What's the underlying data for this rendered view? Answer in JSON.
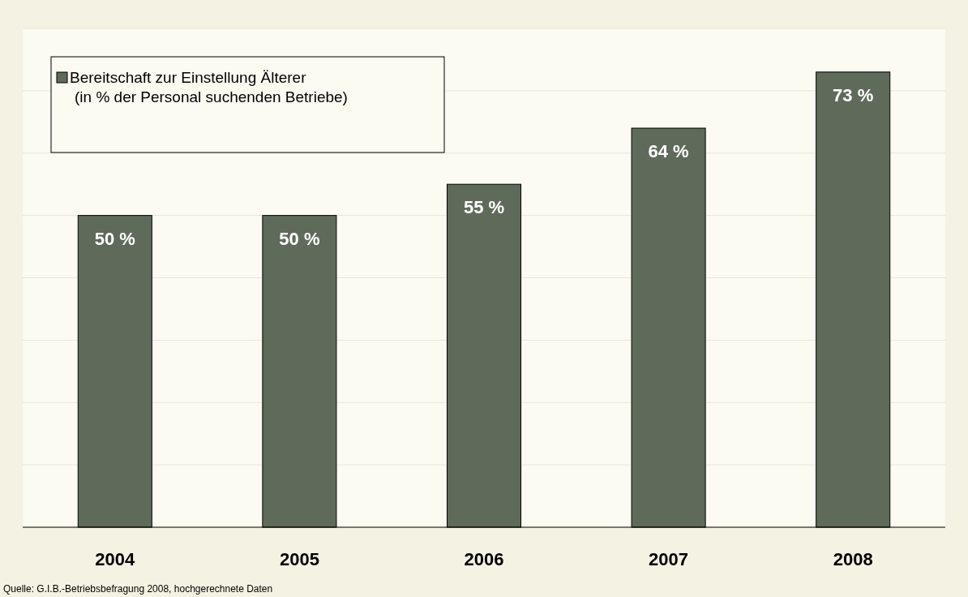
{
  "chart_data": {
    "type": "bar",
    "categories": [
      "2004",
      "2005",
      "2006",
      "2007",
      "2008"
    ],
    "series": [
      {
        "name": "Bereitschaft zur Einstellung Älterer\n(in % der Personal suchenden Betriebe)",
        "color": "#5f6b5a",
        "values": [
          50,
          50,
          55,
          64,
          73
        ],
        "value_labels": [
          "50 %",
          "50 %",
          "55 %",
          "64 %",
          "73 %"
        ]
      }
    ],
    "ylim": [
      0,
      80
    ],
    "yticks": [
      {
        "value": 0,
        "label": null
      },
      {
        "value": 10,
        "label": null
      },
      {
        "value": 20,
        "label": null
      },
      {
        "value": 30,
        "label": null
      },
      {
        "value": 40,
        "label": null
      },
      {
        "value": 50,
        "label": null
      },
      {
        "value": 60,
        "label": null
      },
      {
        "value": 70,
        "label": null
      },
      {
        "value": 80,
        "label": null
      }
    ],
    "tick_labels": "x",
    "grid": "y",
    "legend": "top left",
    "annotations": [
      "Quelle: G.I.B.-Betriebsbefragung 2008, hochgerechnete Daten"
    ]
  }
}
